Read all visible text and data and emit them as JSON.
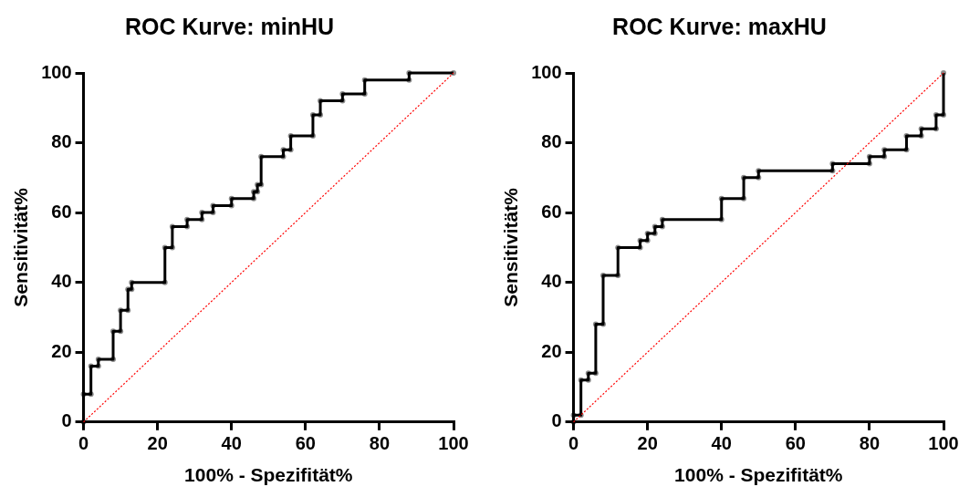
{
  "chart_data": [
    {
      "type": "line",
      "title": "ROC Kurve: minHU",
      "xlabel": "100% - Spezifität%",
      "ylabel": "Sensitivität%",
      "xlim": [
        0,
        100
      ],
      "ylim": [
        0,
        100
      ],
      "xticks": [
        0,
        20,
        40,
        60,
        80,
        100
      ],
      "yticks": [
        0,
        20,
        40,
        60,
        80,
        100
      ],
      "grid": false,
      "legend": false,
      "series": [
        {
          "color": "#000000",
          "marker": "circle",
          "line_style": "solid",
          "x": [
            0,
            0,
            2,
            2,
            4,
            4,
            8,
            8,
            10,
            10,
            12,
            12,
            13,
            13,
            22,
            22,
            24,
            24,
            28,
            28,
            32,
            32,
            35,
            35,
            40,
            40,
            46,
            46,
            47,
            47,
            48,
            48,
            54,
            54,
            56,
            56,
            62,
            62,
            64,
            64,
            70,
            70,
            76,
            76,
            88,
            88,
            100
          ],
          "values": [
            0,
            8,
            8,
            16,
            16,
            18,
            18,
            26,
            26,
            32,
            32,
            38,
            38,
            40,
            40,
            50,
            50,
            56,
            56,
            58,
            58,
            60,
            60,
            62,
            62,
            64,
            64,
            66,
            66,
            68,
            68,
            76,
            76,
            78,
            78,
            82,
            82,
            88,
            88,
            92,
            92,
            94,
            94,
            98,
            98,
            100,
            100
          ]
        },
        {
          "type": "line",
          "color": "#ff0000",
          "marker": "none",
          "line_style": "dotted",
          "x": [
            0,
            100
          ],
          "values": [
            0,
            100
          ]
        }
      ]
    },
    {
      "type": "line",
      "title": "ROC Kurve: maxHU",
      "xlabel": "100% - Spezifität%",
      "ylabel": "Sensitivität%",
      "xlim": [
        0,
        100
      ],
      "ylim": [
        0,
        100
      ],
      "xticks": [
        0,
        20,
        40,
        60,
        80,
        100
      ],
      "yticks": [
        0,
        20,
        40,
        60,
        80,
        100
      ],
      "grid": false,
      "legend": false,
      "series": [
        {
          "color": "#000000",
          "marker": "circle",
          "line_style": "solid",
          "x": [
            0,
            0,
            2,
            2,
            4,
            4,
            6,
            6,
            8,
            8,
            12,
            12,
            18,
            18,
            20,
            20,
            22,
            22,
            24,
            24,
            40,
            40,
            46,
            46,
            50,
            50,
            70,
            70,
            80,
            80,
            84,
            84,
            90,
            90,
            94,
            94,
            98,
            98,
            100,
            100
          ],
          "values": [
            0,
            2,
            2,
            12,
            12,
            14,
            14,
            28,
            28,
            42,
            42,
            50,
            50,
            52,
            52,
            54,
            54,
            56,
            56,
            58,
            58,
            64,
            64,
            70,
            70,
            72,
            72,
            74,
            74,
            76,
            76,
            78,
            78,
            82,
            82,
            84,
            84,
            88,
            88,
            100
          ]
        },
        {
          "type": "line",
          "color": "#ff0000",
          "marker": "none",
          "line_style": "dotted",
          "x": [
            0,
            100
          ],
          "values": [
            0,
            100
          ]
        }
      ]
    }
  ]
}
